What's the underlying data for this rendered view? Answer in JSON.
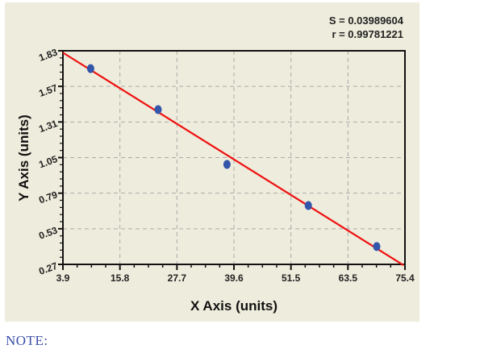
{
  "chart_data": {
    "type": "scatter",
    "title": "",
    "xlabel": "X Axis (units)",
    "ylabel": "Y Axis (units)",
    "xlim": [
      3.9,
      75.4
    ],
    "ylim": [
      0.27,
      1.83
    ],
    "xticks": [
      "3.9",
      "15.8",
      "27.7",
      "39.6",
      "51.5",
      "63.5",
      "75.4"
    ],
    "yticks": [
      "0.27",
      "0.53",
      "0.79",
      "1.05",
      "1.31",
      "1.57",
      "1.83"
    ],
    "grid": true,
    "series": [
      {
        "name": "points",
        "x": [
          9.7,
          23.8,
          38.2,
          55.2,
          69.5
        ],
        "y": [
          1.7,
          1.4,
          1.0,
          0.7,
          0.4
        ],
        "color": "#3355aa"
      },
      {
        "name": "fit",
        "type": "line",
        "x": [
          3.9,
          75.1
        ],
        "y": [
          1.816,
          0.264
        ],
        "color": "#ee1111"
      }
    ],
    "annotations": {
      "s": "S = 0.03989604",
      "r": "r = 0.99781221"
    }
  },
  "note": "NOTE:"
}
